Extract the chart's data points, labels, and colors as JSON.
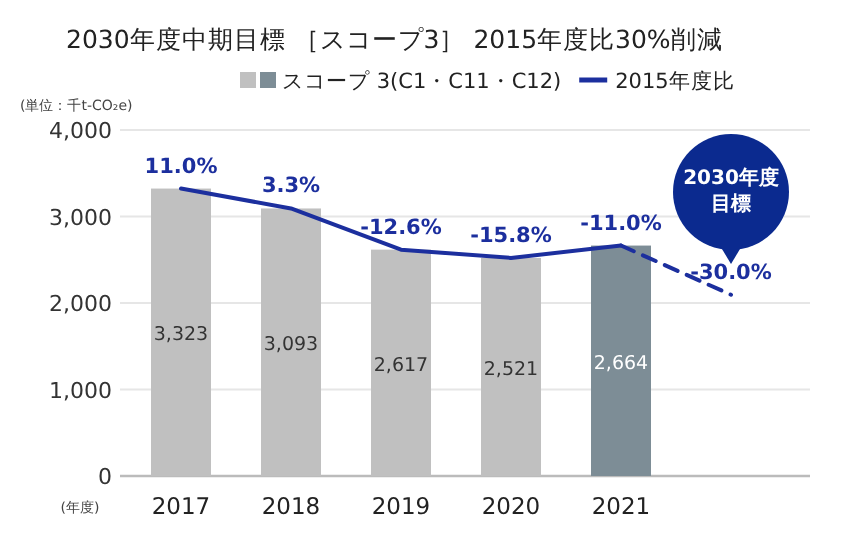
{
  "chart_data": {
    "type": "bar",
    "title": "2030年度中期目標 ［スコープ3］ 2015年度比30%削減",
    "ylabel": "(単位：千t-CO₂e)",
    "xlabel": "(年度)",
    "categories": [
      "2017",
      "2018",
      "2019",
      "2020",
      "2021",
      null
    ],
    "series": [
      {
        "name": "スコープ 3(C1・C11・C12)",
        "colors": [
          "#c0c0c0",
          "#c0c0c0",
          "#c0c0c0",
          "#c0c0c0",
          "#7d8d96",
          "#c0c0c0"
        ],
        "values": [
          3323,
          3093,
          2617,
          2521,
          2664,
          null
        ],
        "value_labels": [
          "3,323",
          "3,093",
          "2,617",
          "2,521",
          "2,664",
          null
        ]
      },
      {
        "name": "2015年度比",
        "type": "line",
        "axis": "y2",
        "color": "#1c2f9e",
        "values": [
          11.0,
          3.3,
          -12.6,
          -15.8,
          -11.0,
          null
        ],
        "value_labels": [
          "11.0%",
          "3.3%",
          "-12.6%",
          "-15.8%",
          null,
          null
        ]
      },
      {
        "type": "line",
        "axis": "y2",
        "color": "#1c2f9e",
        "line_style": "dashed",
        "values": [
          null,
          null,
          null,
          null,
          -11.0,
          -30.0
        ],
        "value_labels": [
          null,
          null,
          null,
          null,
          "-11.0%",
          "-30.0%"
        ]
      }
    ],
    "annotations": [
      "2030年度目標"
    ],
    "ylim": [
      0,
      4000
    ],
    "yticks": [
      0,
      {
        "value": 1000,
        "label": "1,000"
      },
      {
        "value": 2000,
        "label": "2,000"
      },
      {
        "value": 3000,
        "label": "3,000"
      },
      {
        "value": 4000,
        "label": "4,000"
      }
    ],
    "y2lim": [
      -100,
      33.6
    ],
    "grid": "y",
    "legend": "top",
    "marker": "none"
  }
}
